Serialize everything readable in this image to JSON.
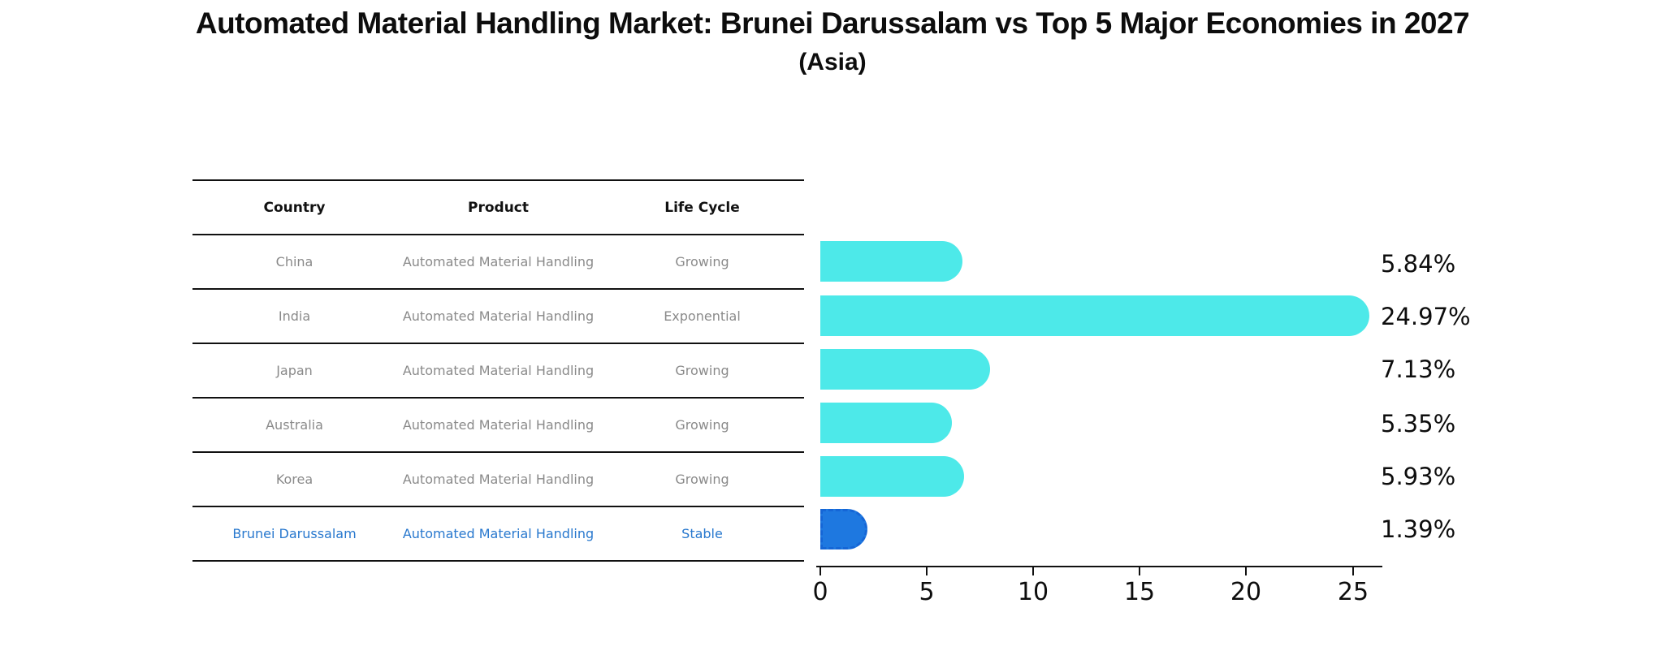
{
  "header": {
    "title": "Automated Material Handling Market: Brunei Darussalam vs Top 5 Major Economies in 2027",
    "subtitle": "(Asia)"
  },
  "table": {
    "columns": [
      "Country",
      "Product",
      "Life Cycle"
    ],
    "rows": [
      {
        "country": "China",
        "product": "Automated Material Handling",
        "life_cycle": "Growing"
      },
      {
        "country": "India",
        "product": "Automated Material Handling",
        "life_cycle": "Exponential"
      },
      {
        "country": "Japan",
        "product": "Automated Material Handling",
        "life_cycle": "Growing"
      },
      {
        "country": "Australia",
        "product": "Automated Material Handling",
        "life_cycle": "Growing"
      },
      {
        "country": "Korea",
        "product": "Automated Material Handling",
        "life_cycle": "Growing"
      },
      {
        "country": "Brunei Darussalam",
        "product": "Automated Material Handling",
        "life_cycle": "Stable"
      }
    ]
  },
  "chart_data": {
    "type": "bar",
    "orientation": "horizontal",
    "title": "Automated Material Handling Market: Brunei Darussalam vs Top 5 Major Economies in 2027",
    "subtitle": "(Asia)",
    "categories": [
      "China",
      "India",
      "Japan",
      "Australia",
      "Korea",
      "Brunei Darussalam"
    ],
    "values": [
      5.84,
      24.97,
      7.13,
      5.35,
      5.93,
      1.39
    ],
    "value_labels": [
      "5.84%",
      "24.97%",
      "7.13%",
      "5.35%",
      "5.93%",
      "1.39%"
    ],
    "x_ticks": [
      "0",
      "5",
      "10",
      "15",
      "20",
      "25"
    ],
    "xlim": [
      0,
      26.5
    ],
    "grid": false,
    "legend": "none",
    "xlabel": "",
    "ylabel": "",
    "bar_color": "#4DE9E9",
    "highlight_index": 5,
    "highlight_color": "#1E78E0",
    "highlight_border_color": "#1566D6",
    "highlight_text_color": "#2878CE"
  }
}
